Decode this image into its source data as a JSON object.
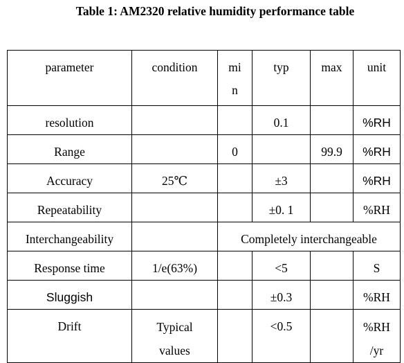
{
  "title": "Table 1: AM2320 relative humidity performance table",
  "headers": {
    "parameter": "parameter",
    "condition": "condition",
    "min": "min",
    "typ": "typ",
    "max": "max",
    "unit": "unit"
  },
  "rows": [
    {
      "parameter": "resolution",
      "condition": "",
      "min": "",
      "typ": "0.1",
      "max": "",
      "unit": "%RH"
    },
    {
      "parameter": "Range",
      "condition": "",
      "min": "0",
      "typ": "",
      "max": "99.9",
      "unit": "%RH"
    },
    {
      "parameter": "Accuracy",
      "condition": "25℃",
      "min": "",
      "typ": "±3",
      "max": "",
      "unit": "%RH"
    },
    {
      "parameter": "Repeatability",
      "condition": "",
      "min": "",
      "typ": "±0. 1",
      "max": "",
      "unit": "%RH"
    },
    {
      "parameter": "Interchangeability",
      "condition": "",
      "merged": "Completely interchangeable"
    },
    {
      "parameter": "Response time",
      "condition": "1/e(63%)",
      "min": "",
      "typ": "<5",
      "max": "",
      "unit": "S"
    },
    {
      "parameter": "Sluggish",
      "condition": "",
      "min": "",
      "typ": "±0.3",
      "max": "",
      "unit": "%RH"
    },
    {
      "parameter": "Drift",
      "condition": "Typical values",
      "min": "",
      "typ": "<0.5",
      "max": "",
      "unit": "%RH /yr"
    }
  ]
}
